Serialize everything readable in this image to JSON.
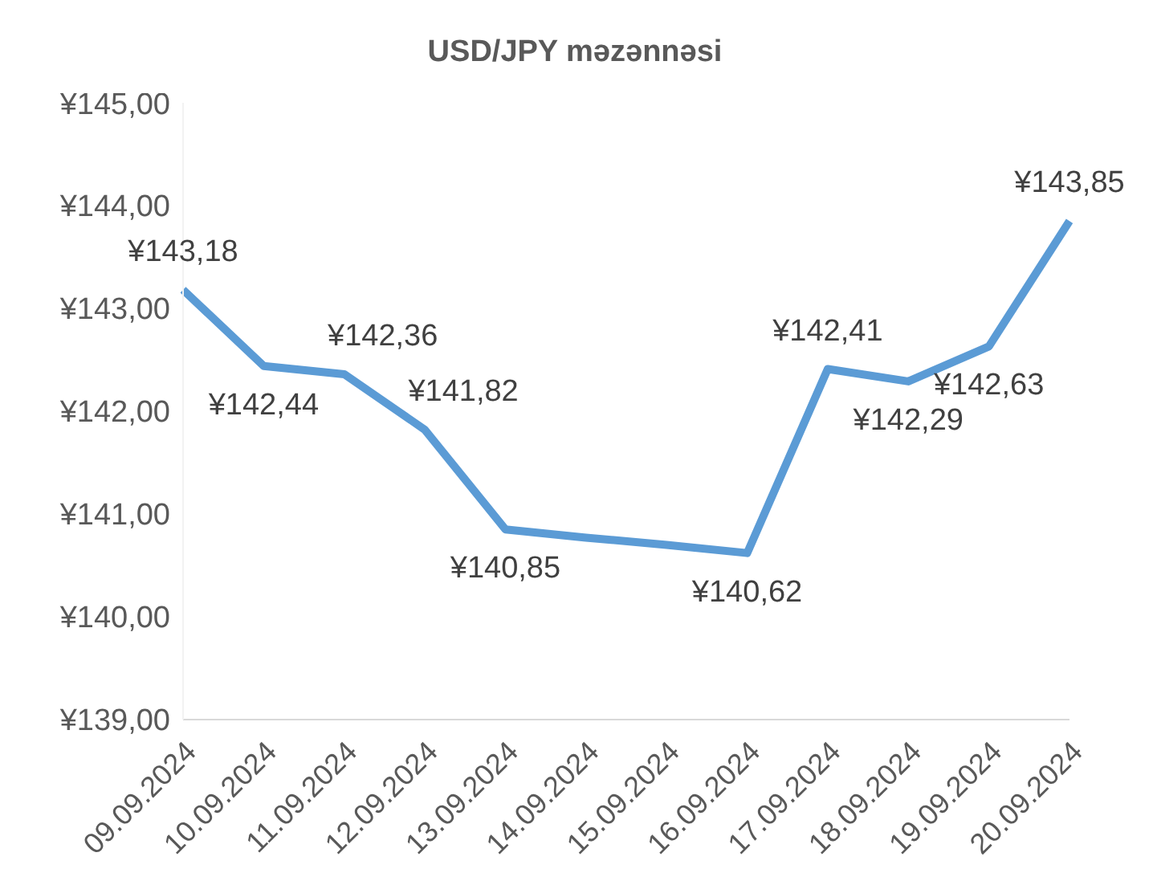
{
  "chart_data": {
    "type": "line",
    "title": "USD/JPY məzənnəsi",
    "categories": [
      "09.09.2024",
      "10.09.2024",
      "11.09.2024",
      "12.09.2024",
      "13.09.2024",
      "14.09.2024",
      "15.09.2024",
      "16.09.2024",
      "17.09.2024",
      "18.09.2024",
      "19.09.2024",
      "20.09.2024"
    ],
    "series": [
      {
        "color": "#5b9bd5",
        "values": [
          143.18,
          142.44,
          142.36,
          141.82,
          140.85,
          140.77,
          140.7,
          140.62,
          142.41,
          142.29,
          142.63,
          143.85
        ],
        "value_labels": [
          "¥143,18",
          "¥142,44",
          "¥142,36",
          "¥141,82",
          "¥140,85",
          null,
          null,
          "¥140,62",
          "¥142,41",
          "¥142,29",
          "¥142,63",
          "¥143,85"
        ]
      }
    ],
    "ylim": [
      139,
      145
    ],
    "yticks": [
      {
        "value": 139,
        "label": "¥139,00"
      },
      {
        "value": 140,
        "label": "¥140,00"
      },
      {
        "value": 141,
        "label": "¥141,00"
      },
      {
        "value": 142,
        "label": "¥142,00"
      },
      {
        "value": 143,
        "label": "¥143,00"
      },
      {
        "value": 144,
        "label": "¥144,00"
      },
      {
        "value": 145,
        "label": "¥145,00"
      }
    ],
    "grid": false,
    "legend": false,
    "marker": "none",
    "line_style": "solid"
  }
}
